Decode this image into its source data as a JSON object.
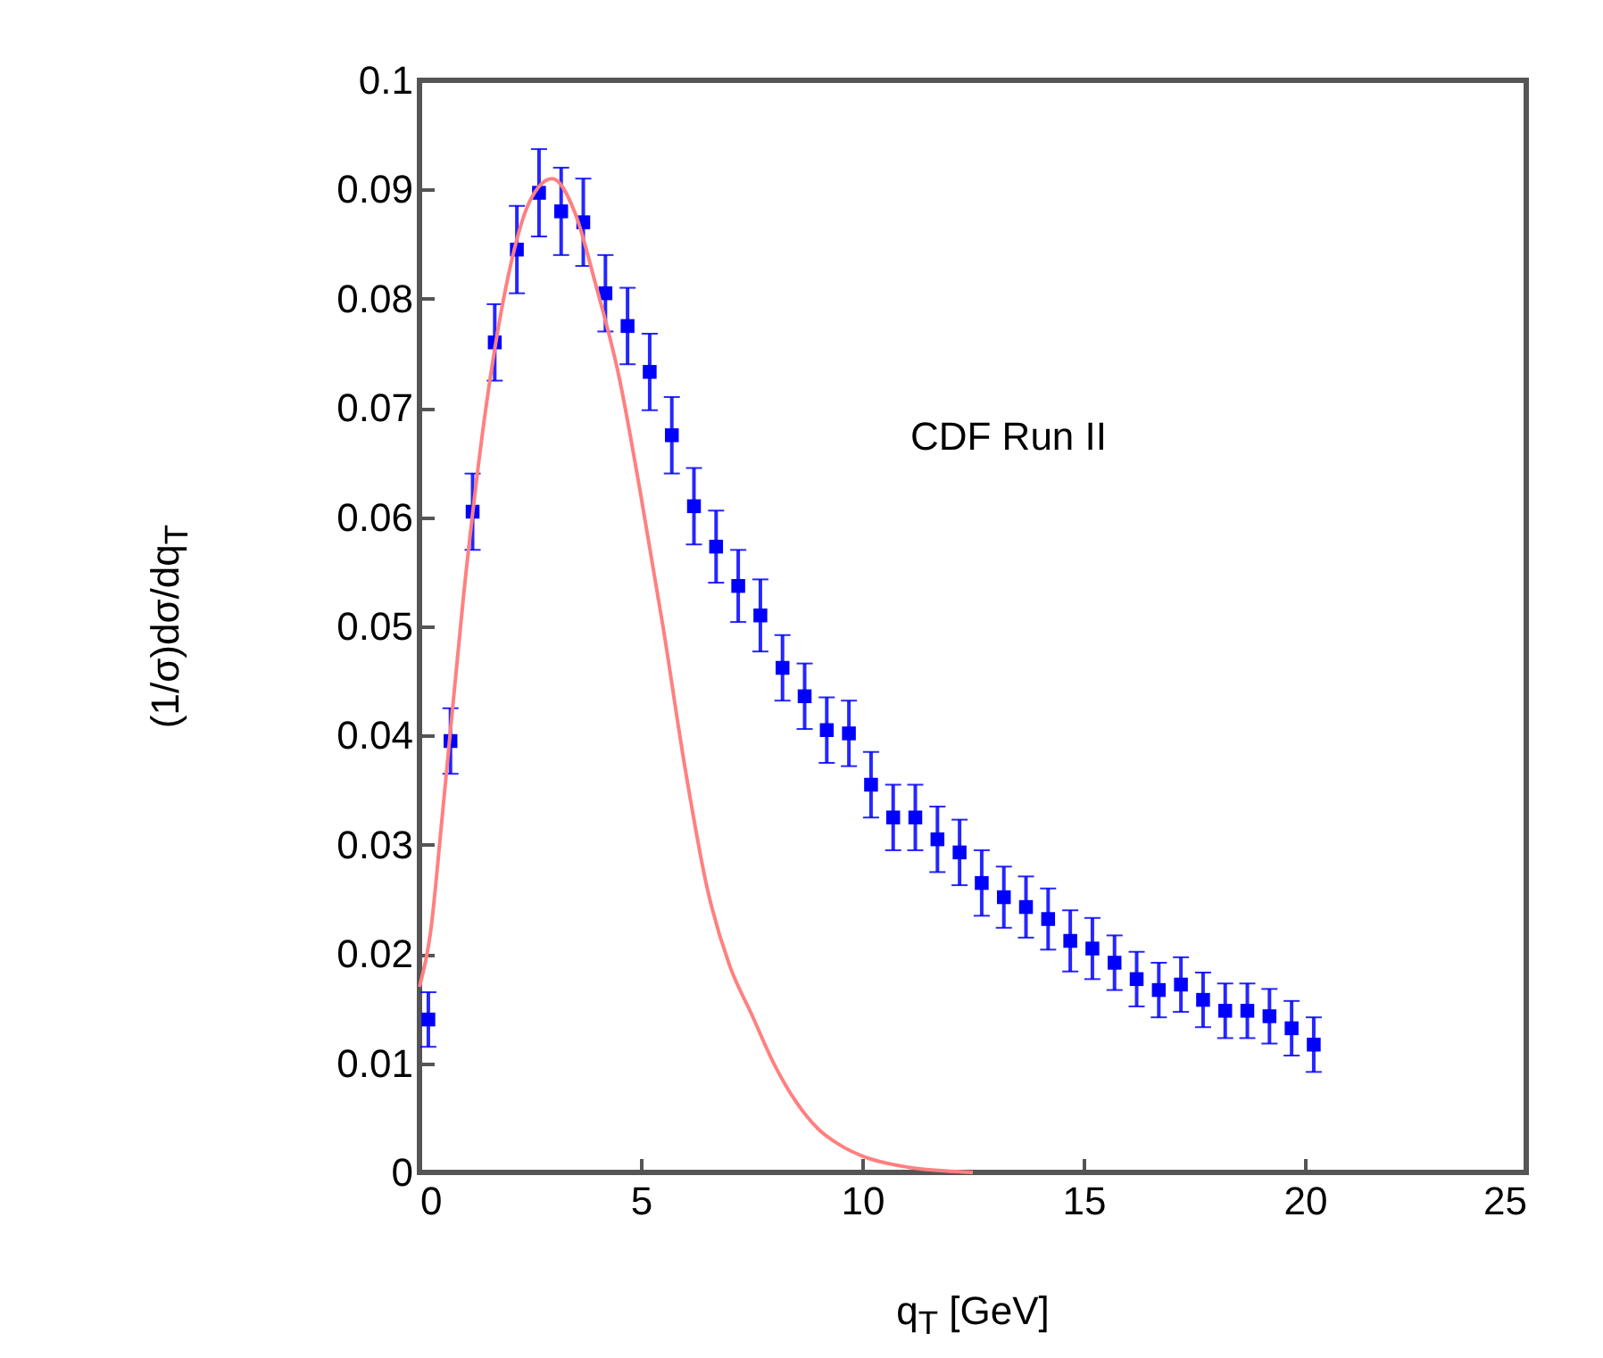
{
  "chart_data": {
    "type": "scatter",
    "xlabel": "q$_{T}$ [GeV]",
    "ylabel": "(1/σ)dσ/dq$_{T}$",
    "annotations": [
      "CDF Run II"
    ],
    "xlim": [
      0,
      25
    ],
    "xticks": [
      0,
      5,
      10,
      15,
      20,
      25
    ],
    "ylim": [
      0,
      0.1
    ],
    "yticks": [
      0,
      0.01,
      0.02,
      0.03,
      0.04,
      0.05,
      0.06,
      0.07,
      0.08,
      0.09,
      0.1
    ],
    "series": [
      {
        "color": "#0000ff",
        "marker": "square",
        "x": [
          0.2,
          0.7,
          1.2,
          1.7,
          2.2,
          2.7,
          3.2,
          3.7,
          4.2,
          4.7,
          5.2,
          5.7,
          6.2,
          6.7,
          7.2,
          7.7,
          8.2,
          8.7,
          9.2,
          9.7,
          10.2,
          10.7,
          11.2,
          11.7,
          12.2,
          12.7,
          13.2,
          13.7,
          14.2,
          14.7,
          15.2,
          15.7,
          16.2,
          16.7,
          17.2,
          17.7,
          18.2,
          18.7,
          19.2,
          19.7,
          20.2
        ],
        "values": [
          0.014,
          0.0395,
          0.0605,
          0.076,
          0.0845,
          0.0897,
          0.088,
          0.087,
          0.0805,
          0.0775,
          0.0733,
          0.0675,
          0.061,
          0.0573,
          0.0537,
          0.051,
          0.0462,
          0.0436,
          0.0405,
          0.0402,
          0.0355,
          0.0325,
          0.0325,
          0.0305,
          0.0293,
          0.0265,
          0.0252,
          0.0243,
          0.0232,
          0.0212,
          0.0205,
          0.0192,
          0.0177,
          0.0167,
          0.0172,
          0.0158,
          0.0148,
          0.0148,
          0.0143,
          0.0132,
          0.0117
        ],
        "errors": [
          0.0025,
          0.003,
          0.0035,
          0.0035,
          0.004,
          0.004,
          0.004,
          0.004,
          0.0035,
          0.0035,
          0.0035,
          0.0035,
          0.0035,
          0.0033,
          0.0033,
          0.0033,
          0.003,
          0.003,
          0.003,
          0.003,
          0.003,
          0.003,
          0.003,
          0.003,
          0.003,
          0.003,
          0.0028,
          0.0028,
          0.0028,
          0.0028,
          0.0028,
          0.0025,
          0.0025,
          0.0025,
          0.0025,
          0.0025,
          0.0025,
          0.0025,
          0.0025,
          0.0025,
          0.0025
        ]
      },
      {
        "type": "line",
        "color": "#ff8080",
        "marker": "none",
        "line_style": "solid",
        "x": [
          0,
          0.25,
          0.5,
          1,
          1.5,
          2,
          2.5,
          3,
          3.5,
          4,
          4.5,
          5,
          5.5,
          6,
          6.5,
          7,
          7.5,
          8,
          8.5,
          9,
          9.5,
          10,
          11,
          12,
          12.5
        ],
        "values": [
          0.017,
          0.022,
          0.032,
          0.053,
          0.07,
          0.082,
          0.089,
          0.091,
          0.088,
          0.081,
          0.073,
          0.062,
          0.05,
          0.037,
          0.026,
          0.019,
          0.0145,
          0.01,
          0.0065,
          0.004,
          0.0025,
          0.0015,
          0.0005,
          0.0001,
          0
        ]
      }
    ]
  }
}
